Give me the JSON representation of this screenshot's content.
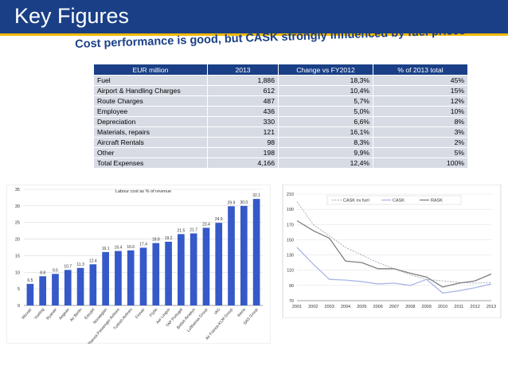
{
  "header": {
    "title": "Key Figures",
    "subtitle": "Cost performance is good, but CASK strongly influenced by fuel prices"
  },
  "table": {
    "columns": [
      "EUR million",
      "2013",
      "Change vs FY2012",
      "% of 2013 total"
    ],
    "rows": [
      [
        "Fuel",
        "1,886",
        "18,3%",
        "45%"
      ],
      [
        "Airport & Handling Charges",
        "612",
        "10,4%",
        "15%"
      ],
      [
        "Route Charges",
        "487",
        "5,7%",
        "12%"
      ],
      [
        "Employee",
        "436",
        "5,0%",
        "10%"
      ],
      [
        "Depreciation",
        "330",
        "6,6%",
        "8%"
      ],
      [
        "Materials, repairs",
        "121",
        "16,1%",
        "3%"
      ],
      [
        "Aircraft Rentals",
        "98",
        "8,3%",
        "2%"
      ],
      [
        "Other",
        "198",
        "9,9%",
        "5%"
      ],
      [
        "Total Expenses",
        "4,166",
        "12,4%",
        "100%"
      ]
    ]
  },
  "colors": {
    "brand_blue": "#1a3f86",
    "accent_yellow": "#f2b800",
    "bar_blue": "#3559c9",
    "line_rask": "#7f7f7f",
    "line_cask": "#a9b7e6",
    "line_cask_ex": "#9aa3b5"
  },
  "chart_data": [
    {
      "type": "bar",
      "title": "Labour cost as % of revenue",
      "categories": [
        "Wizzair",
        "Vueling",
        "Ryanair",
        "Aegean",
        "Air Berlin",
        "Easyjet",
        "Norwegian",
        "Lufthansa Passenger Airlines",
        "Turkish Airlines",
        "Finnair",
        "Flybe",
        "Aer Lingus",
        "TAP Portugal",
        "British Airways",
        "Lufthansa Group",
        "IAG",
        "Air France-KLM Group",
        "Iberia",
        "SAS Group"
      ],
      "values": [
        6.5,
        8.8,
        9.5,
        10.7,
        11.3,
        12.4,
        16.1,
        16.4,
        16.6,
        17.4,
        18.8,
        19.2,
        21.5,
        21.7,
        23.4,
        24.9,
        29.9,
        30.0,
        32.1
      ],
      "value_labels": [
        "6.5",
        "8.8",
        "9.5",
        "10.7",
        "11.3",
        "12.4",
        "16.1",
        "16.4",
        "16.6",
        "17.4",
        "18.8",
        "19.2",
        "21.5",
        "21.7",
        "23.4",
        "24.9",
        "29.9",
        "30.0",
        "32.1"
      ],
      "ylim": [
        0,
        35
      ],
      "yticks": [
        "0",
        "5",
        "10",
        "15",
        "20",
        "25",
        "30",
        "35"
      ],
      "xlabel": "",
      "ylabel": ""
    },
    {
      "type": "line",
      "x": [
        "2001",
        "2002",
        "2003",
        "2004",
        "2005",
        "2006",
        "2007",
        "2008",
        "2009",
        "2010",
        "2011",
        "2012",
        "2013"
      ],
      "series": [
        {
          "name": "CASK ex fuel",
          "values": [
            200,
            170,
            155,
            140,
            130,
            120,
            112,
            104,
            98,
            96,
            94,
            93,
            94
          ]
        },
        {
          "name": "CASK",
          "values": [
            140,
            118,
            98,
            97,
            95,
            92,
            93,
            90,
            98,
            80,
            83,
            87,
            92
          ]
        },
        {
          "name": "RASK",
          "values": [
            175,
            162,
            152,
            122,
            120,
            112,
            112,
            106,
            101,
            88,
            93,
            96,
            105
          ]
        }
      ],
      "ylim": [
        70,
        210
      ],
      "yticks": [
        "70",
        "90",
        "110",
        "130",
        "150",
        "170",
        "190",
        "210"
      ],
      "legend": "top",
      "xlabel": "",
      "ylabel": ""
    }
  ]
}
